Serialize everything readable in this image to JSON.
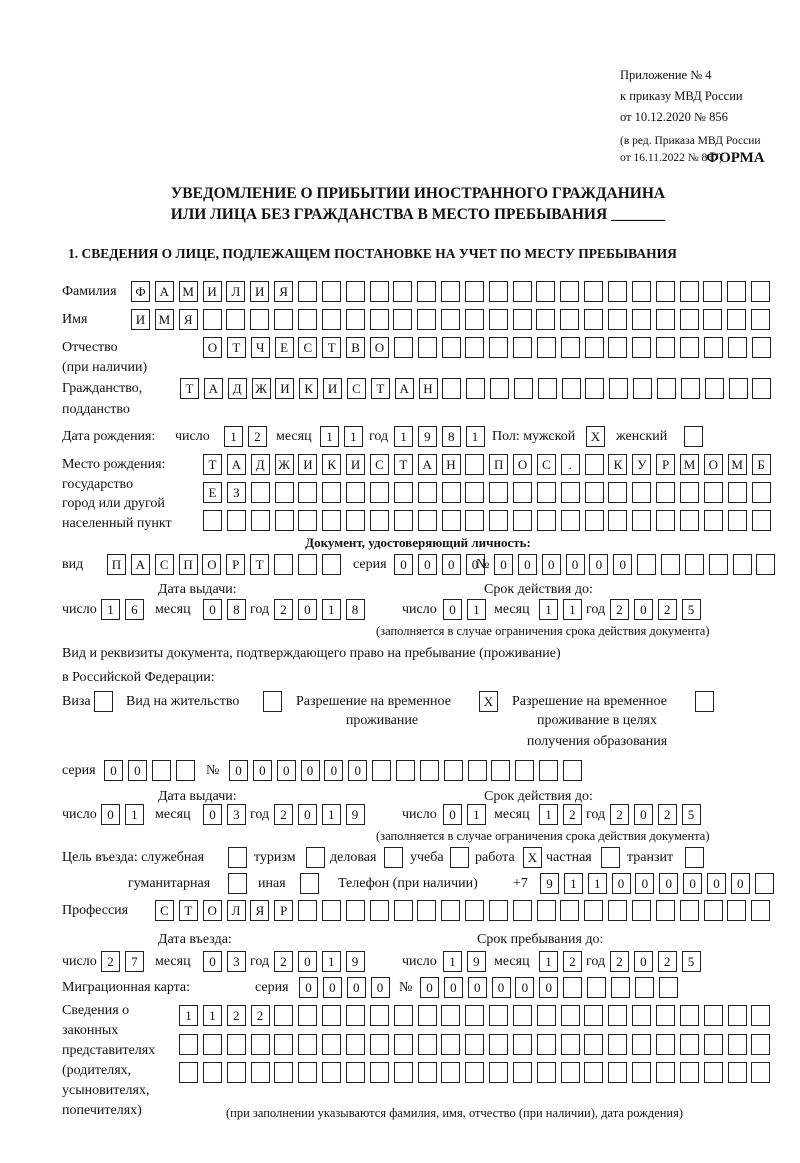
{
  "header": {
    "appendix": "Приложение № 4",
    "order": "к приказу МВД России",
    "order_date": "от 10.12.2020 № 856",
    "revision_1": "(в ред. Приказа МВД России",
    "revision_2": "от 16.11.2022 № 867)",
    "form_label": "ФОРМА",
    "title_1": "УВЕДОМЛЕНИЕ О ПРИБЫТИИ ИНОСТРАННОГО ГРАЖДАНИНА",
    "title_2": "ИЛИ ЛИЦА БЕЗ ГРАЖДАНСТВА В МЕСТО ПРЕБЫВАНИЯ _______",
    "section_1": "1. СВЕДЕНИЯ О ЛИЦЕ, ПОДЛЕЖАЩЕМ ПОСТАНОВКЕ НА УЧЕТ ПО МЕСТУ ПРЕБЫВАНИЯ"
  },
  "labels": {
    "surname": "Фамилия",
    "name": "Имя",
    "patronymic_1": "Отчество",
    "patronymic_2": "(при наличии)",
    "citizenship_1": "Гражданство,",
    "citizenship_2": "подданство",
    "birth_date": "Дата рождения:",
    "day": "число",
    "month": "месяц",
    "year": "год",
    "sex": "Пол: мужской",
    "female": "женский",
    "birthplace_1": "Место рождения:",
    "birthplace_2": "государство",
    "birthplace_3": "город или другой",
    "birthplace_4": "населенный пункт",
    "id_doc": "Документ, удостоверяющий личность:",
    "kind": "вид",
    "series": "серия",
    "number": "№",
    "issue_date": "Дата выдачи:",
    "valid_until": "Срок действия до:",
    "valid_note": "(заполняется в случае ограничения срока действия документа)",
    "stay_doc_1": "Вид и реквизиты документа, подтверждающего право на пребывание (проживание)",
    "stay_doc_2": "в Российской Федерации:",
    "visa": "Виза",
    "residence": "Вид на жительство",
    "trp_1": "Разрешение на временное",
    "trp_2": "проживание",
    "trp_edu_1": "Разрешение на временное",
    "trp_edu_2": "проживание в целях",
    "trp_edu_3": "получения образования",
    "purpose": "Цель въезда: служебная",
    "tourism": "туризм",
    "business": "деловая",
    "study": "учеба",
    "work": "работа",
    "private": "частная",
    "transit": "транзит",
    "humanitarian": "гуманитарная",
    "other": "иная",
    "phone": "Телефон (при наличии)",
    "phone_prefix": "+7",
    "profession": "Профессия",
    "entry_date": "Дата въезда:",
    "stay_until": "Срок пребывания до:",
    "migration_card": "Миграционная карта:",
    "reps_1": "Сведения о",
    "reps_2": "законных",
    "reps_3": "представителях",
    "reps_4": "(родителях,",
    "reps_5": "усыновителях,",
    "reps_6": "попечителях)",
    "reps_note": "(при заполнении указываются фамилия, имя, отчество (при наличии), дата рождения)"
  },
  "values": {
    "surname": "ФАМИЛИЯ",
    "name": "ИМЯ",
    "patronymic": "ОТЧЕСТВО",
    "citizenship": "ТАДЖИКИСТАН",
    "birth_day": "12",
    "birth_month": "11",
    "birth_year": "1981",
    "male": "X",
    "female": "",
    "birthplace_1": "ТАДЖИКИСТАН ПОС. КУРМОМБ",
    "birthplace_2": "ЕЗ",
    "birthplace_3": "",
    "id_kind": "ПАСПОРТ",
    "id_series": "0000",
    "id_number": "000000",
    "id_issue_day": "16",
    "id_issue_month": "08",
    "id_issue_year": "2018",
    "id_valid_day": "01",
    "id_valid_month": "11",
    "id_valid_year": "2025",
    "visa": "",
    "residence": "",
    "trp": "X",
    "trp_edu": "",
    "stay_series": "00",
    "stay_number": "000000",
    "stay_issue_day": "01",
    "stay_issue_month": "03",
    "stay_issue_year": "2019",
    "stay_valid_day": "01",
    "stay_valid_month": "12",
    "stay_valid_year": "2025",
    "purpose_official": "",
    "purpose_tourism": "",
    "purpose_business": "",
    "purpose_study": "",
    "purpose_work": "X",
    "purpose_private": "",
    "purpose_transit": "",
    "purpose_humanitarian": "",
    "purpose_other": "",
    "phone": "911000000",
    "profession": "СТОЛЯР",
    "entry_day": "27",
    "entry_month": "03",
    "entry_year": "2019",
    "stay_until_day": "19",
    "stay_until_month": "12",
    "stay_until_year": "2025",
    "mc_series": "0000",
    "mc_number": "000000",
    "reps_1": "1122",
    "reps_2": "",
    "reps_3": ""
  }
}
